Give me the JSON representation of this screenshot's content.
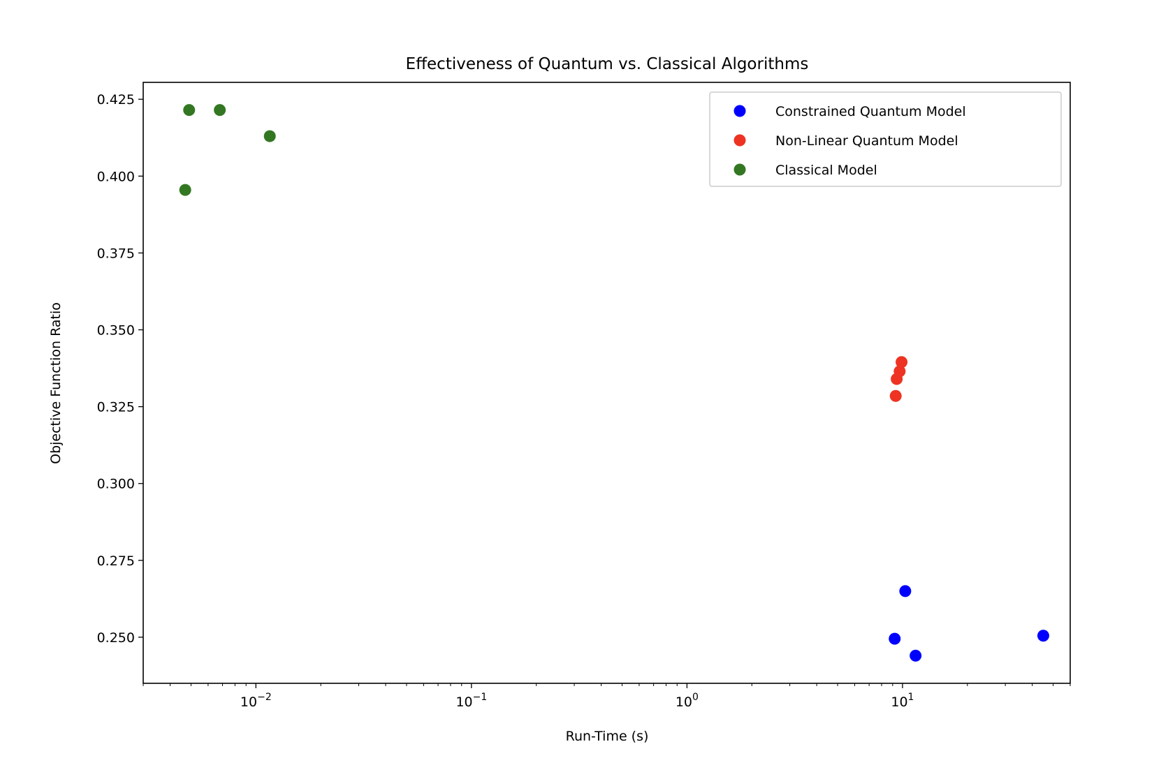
{
  "chart_data": {
    "type": "scatter",
    "title": "Effectiveness of Quantum vs. Classical Algorithms",
    "xlabel": "Run-Time (s)",
    "ylabel": "Objective Function Ratio",
    "xscale": "log",
    "xlim": [
      0.003,
      60
    ],
    "ylim": [
      0.235,
      0.4305
    ],
    "x_ticks": [
      {
        "value": 0.01,
        "base": "10",
        "exp": "−2"
      },
      {
        "value": 0.1,
        "base": "10",
        "exp": "−1"
      },
      {
        "value": 1,
        "base": "10",
        "exp": "0"
      },
      {
        "value": 10,
        "base": "10",
        "exp": "1"
      }
    ],
    "y_ticks": [
      {
        "value": 0.25,
        "label": "0.250"
      },
      {
        "value": 0.275,
        "label": "0.275"
      },
      {
        "value": 0.3,
        "label": "0.300"
      },
      {
        "value": 0.325,
        "label": "0.325"
      },
      {
        "value": 0.35,
        "label": "0.350"
      },
      {
        "value": 0.375,
        "label": "0.375"
      },
      {
        "value": 0.4,
        "label": "0.400"
      },
      {
        "value": 0.425,
        "label": "0.425"
      }
    ],
    "grid": false,
    "legend_position": "top-right",
    "series": [
      {
        "name": "Constrained Quantum Model",
        "color": "#0000ff",
        "points": [
          {
            "x": 9.2,
            "y": 0.2495
          },
          {
            "x": 10.3,
            "y": 0.265
          },
          {
            "x": 11.5,
            "y": 0.244
          },
          {
            "x": 45,
            "y": 0.2505
          }
        ]
      },
      {
        "name": "Non-Linear Quantum Model",
        "color": "#ee3322",
        "points": [
          {
            "x": 9.3,
            "y": 0.3285
          },
          {
            "x": 9.4,
            "y": 0.334
          },
          {
            "x": 9.7,
            "y": 0.3365
          },
          {
            "x": 9.9,
            "y": 0.3395
          }
        ]
      },
      {
        "name": "Classical Model",
        "color": "#337722",
        "points": [
          {
            "x": 0.0047,
            "y": 0.3955
          },
          {
            "x": 0.0049,
            "y": 0.4215
          },
          {
            "x": 0.0068,
            "y": 0.4215
          },
          {
            "x": 0.0116,
            "y": 0.413
          }
        ]
      }
    ]
  }
}
